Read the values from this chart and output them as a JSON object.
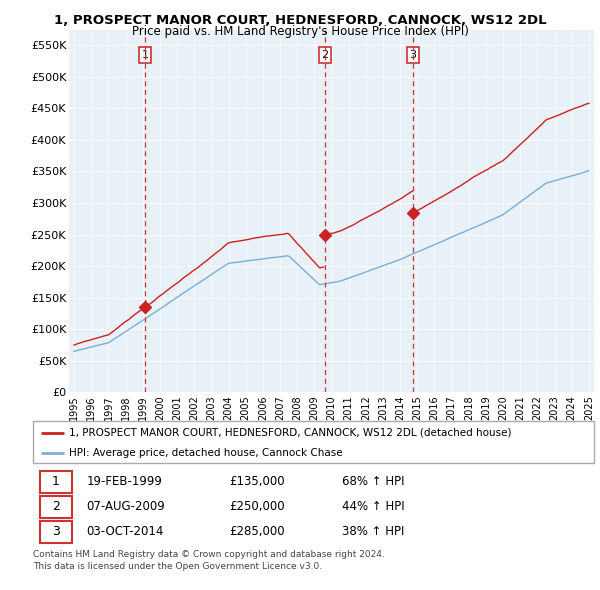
{
  "title": "1, PROSPECT MANOR COURT, HEDNESFORD, CANNOCK, WS12 2DL",
  "subtitle": "Price paid vs. HM Land Registry's House Price Index (HPI)",
  "ylabel_ticks": [
    "£0",
    "£50K",
    "£100K",
    "£150K",
    "£200K",
    "£250K",
    "£300K",
    "£350K",
    "£400K",
    "£450K",
    "£500K",
    "£550K"
  ],
  "ytick_vals": [
    0,
    50000,
    100000,
    150000,
    200000,
    250000,
    300000,
    350000,
    400000,
    450000,
    500000,
    550000
  ],
  "ylim": [
    0,
    575000
  ],
  "purchases": [
    {
      "date_num": 1999.12,
      "price": 135000,
      "label": "1",
      "date_str": "19-FEB-1999",
      "pct": "68% ↑ HPI"
    },
    {
      "date_num": 2009.62,
      "price": 250000,
      "label": "2",
      "date_str": "07-AUG-2009",
      "pct": "44% ↑ HPI"
    },
    {
      "date_num": 2014.75,
      "price": 285000,
      "label": "3",
      "date_str": "03-OCT-2014",
      "pct": "38% ↑ HPI"
    }
  ],
  "vline_color": "#cc3333",
  "price_line_color": "#cc2222",
  "hpi_line_color": "#7bafd4",
  "plot_bg_color": "#e8f0f8",
  "grid_color": "#ffffff",
  "legend_label_price": "1, PROSPECT MANOR COURT, HEDNESFORD, CANNOCK, WS12 2DL (detached house)",
  "legend_label_hpi": "HPI: Average price, detached house, Cannock Chase",
  "footer1": "Contains HM Land Registry data © Crown copyright and database right 2024.",
  "footer2": "This data is licensed under the Open Government Licence v3.0.",
  "xlim_start": 1994.7,
  "xlim_end": 2025.3
}
